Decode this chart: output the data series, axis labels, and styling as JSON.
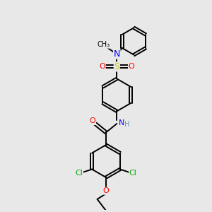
{
  "background_color": "#e8e8e8",
  "bond_color": "#000000",
  "atom_colors": {
    "N": "#0000ff",
    "O": "#ff0000",
    "S": "#cccc00",
    "Cl": "#00aa00",
    "C": "#000000",
    "H": "#6699aa"
  },
  "font_size": 8,
  "line_width": 1.4
}
